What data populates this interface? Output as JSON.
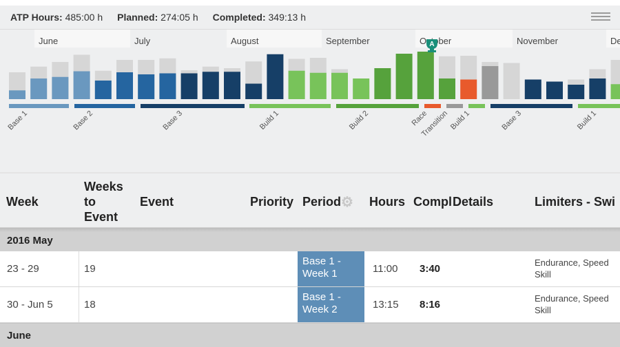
{
  "summary": {
    "atp_label": "ATP Hours:",
    "atp_value": "485:00 h",
    "planned_label": "Planned:",
    "planned_value": "274:05 h",
    "completed_label": "Completed:",
    "completed_value": "349:13 h"
  },
  "chart_data": {
    "type": "bar",
    "months": [
      "June",
      "July",
      "August",
      "September",
      "October",
      "November",
      "De"
    ],
    "race_badge": "A",
    "series": [
      {
        "name": "planned",
        "values": [
          52,
          63,
          72,
          86,
          55,
          76,
          76,
          79,
          56,
          63,
          60,
          73,
          75,
          78,
          80,
          58,
          27,
          60,
          73,
          88,
          83,
          84,
          72,
          70,
          36,
          12,
          38,
          58,
          76,
          75,
          37,
          65,
          65
        ]
      },
      {
        "name": "completed",
        "values": [
          17,
          40,
          43,
          54,
          36,
          52,
          48,
          50,
          50,
          53,
          53,
          30,
          87,
          55,
          51,
          51,
          40,
          60,
          88,
          92,
          40,
          38,
          64,
          0,
          38,
          34,
          28,
          40,
          29,
          31,
          30,
          31,
          34
        ]
      }
    ],
    "phases": [
      {
        "label": "Base 1"
      },
      {
        "label": "Base 2"
      },
      {
        "label": "Base 3"
      },
      {
        "label": "Build 1"
      },
      {
        "label": "Build 2"
      },
      {
        "label": "Race"
      },
      {
        "label": "Transition"
      },
      {
        "label": "Build 1"
      },
      {
        "label": "Base 3"
      },
      {
        "label": "Build 1"
      }
    ]
  },
  "table": {
    "headers": {
      "week": "Week",
      "weeks_to_event_1": "Weeks",
      "weeks_to_event_2": "to",
      "weeks_to_event_3": "Event",
      "event": "Event",
      "priority": "Priority",
      "period": "Period",
      "hours": "Hours",
      "compl": "Compl",
      "details": "Details",
      "limiters": "Limiters - Swi"
    },
    "groups": [
      {
        "label": "2016 May"
      },
      {
        "label": "June"
      }
    ],
    "rows": [
      {
        "week": "23 - 29",
        "weeks_to_event": "19",
        "period_line1": "Base 1 -",
        "period_line2": "Week 1",
        "hours": "11:00",
        "compl": "3:40",
        "limiters_line1": "Endurance, Speed",
        "limiters_line2": "Skill"
      },
      {
        "week": "30 - Jun 5",
        "weeks_to_event": "18",
        "period_line1": "Base 1 -",
        "period_line2": "Week 2",
        "hours": "13:15",
        "compl": "8:16",
        "limiters_line1": "Endurance, Speed",
        "limiters_line2": "Skill"
      }
    ]
  }
}
